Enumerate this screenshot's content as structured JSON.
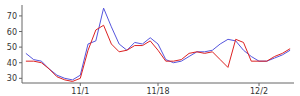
{
  "chart_data": {
    "type": "line",
    "categories": [
      null,
      null,
      null,
      null,
      null,
      null,
      null,
      "11/1",
      null,
      null,
      null,
      null,
      null,
      null,
      null,
      null,
      null,
      "11/18",
      null,
      null,
      null,
      null,
      null,
      null,
      null,
      null,
      null,
      null,
      null,
      null,
      "12/2",
      null,
      null,
      null,
      null
    ],
    "series": [
      {
        "color": "#5555dd",
        "values": [
          46,
          42,
          41,
          36,
          32,
          30,
          29,
          32,
          52,
          54,
          75,
          63,
          52,
          48,
          53,
          52,
          56,
          52,
          42,
          40,
          41,
          44,
          47,
          47,
          48,
          52,
          55,
          54,
          48,
          44,
          41,
          41,
          43,
          45,
          48
        ]
      },
      {
        "color": "#dd2222",
        "values": [
          41,
          41,
          40,
          36,
          31,
          29,
          28,
          30,
          48,
          61,
          64,
          52,
          47,
          48,
          51,
          51,
          54,
          48,
          41,
          41,
          42,
          46,
          47,
          46,
          47,
          42,
          37,
          55,
          53,
          41,
          41,
          41,
          44,
          46,
          49
        ]
      }
    ],
    "ylim": [
      27,
      77
    ],
    "yticks": [
      30,
      40,
      50,
      60,
      70
    ],
    "grid": false
  }
}
